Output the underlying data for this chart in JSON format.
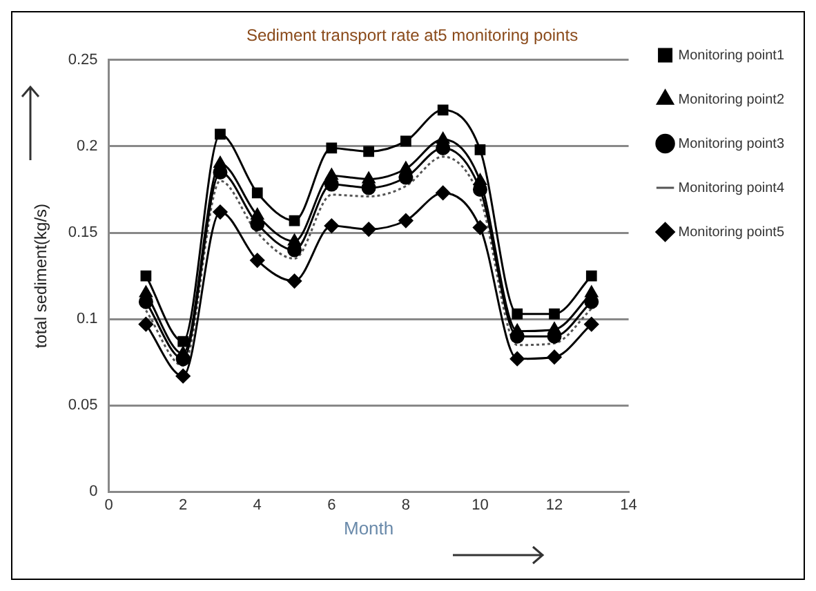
{
  "chart_data": {
    "type": "line",
    "title": "Sediment transport rate at5 monitoring points",
    "xlabel": "Month",
    "ylabel": "total sediment(kg/s)",
    "x": [
      1,
      2,
      3,
      4,
      5,
      6,
      7,
      8,
      9,
      10,
      11,
      12,
      13
    ],
    "series": [
      {
        "name": "Monitoring point1",
        "color": "#000000",
        "marker": "square",
        "line_style": "solid",
        "values": [
          0.125,
          0.087,
          0.207,
          0.173,
          0.157,
          0.199,
          0.197,
          0.203,
          0.221,
          0.198,
          0.103,
          0.103,
          0.125
        ]
      },
      {
        "name": "Monitoring point2",
        "color": "#000000",
        "marker": "triangle",
        "line_style": "solid",
        "values": [
          0.115,
          0.08,
          0.19,
          0.16,
          0.145,
          0.183,
          0.181,
          0.187,
          0.204,
          0.18,
          0.093,
          0.094,
          0.115
        ]
      },
      {
        "name": "Monitoring point3",
        "color": "#000000",
        "marker": "circle",
        "line_style": "solid",
        "values": [
          0.11,
          0.077,
          0.185,
          0.155,
          0.14,
          0.178,
          0.176,
          0.182,
          0.199,
          0.175,
          0.09,
          0.09,
          0.11
        ]
      },
      {
        "name": "Monitoring point4",
        "color": "#555555",
        "marker": "none",
        "line_style": "dotted",
        "values": [
          0.105,
          0.073,
          0.18,
          0.15,
          0.135,
          0.172,
          0.171,
          0.177,
          0.194,
          0.17,
          0.085,
          0.086,
          0.106
        ]
      },
      {
        "name": "Monitoring point5",
        "color": "#000000",
        "marker": "diamond",
        "line_style": "solid",
        "values": [
          0.097,
          0.067,
          0.162,
          0.134,
          0.122,
          0.154,
          0.152,
          0.157,
          0.173,
          0.153,
          0.077,
          0.078,
          0.097
        ]
      }
    ],
    "xlim": [
      0,
      14
    ],
    "xticks": [
      0,
      2,
      4,
      6,
      8,
      10,
      12,
      14
    ],
    "ylim": [
      0,
      0.25
    ],
    "yticks": [
      0,
      0.05,
      0.1,
      0.15,
      0.2,
      0.25
    ],
    "grid": "y",
    "legend": "right"
  }
}
